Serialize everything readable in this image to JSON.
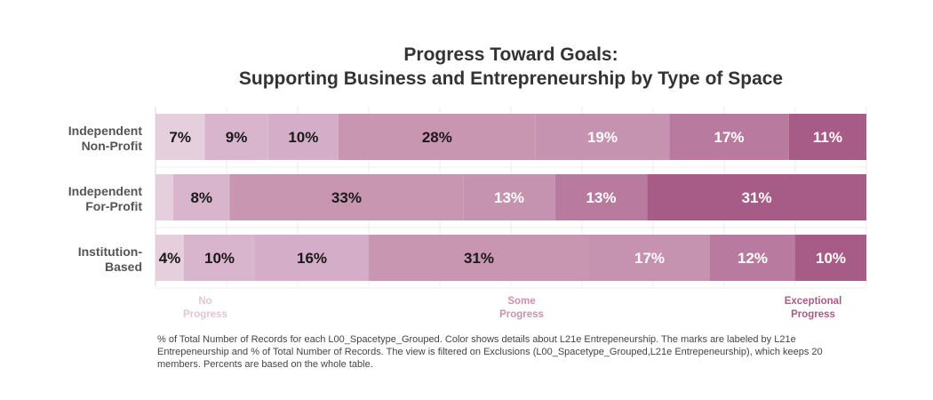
{
  "title": {
    "line1": "Progress Toward Goals:",
    "line2": "Supporting Business and Entrepreneurship by Type of Space"
  },
  "chart_data": {
    "type": "bar",
    "orientation": "horizontal",
    "stacked": true,
    "categories": [
      [
        "Independent",
        "Non-Profit"
      ],
      [
        "Independent",
        "For-Profit"
      ],
      [
        "Institution-",
        "Based"
      ]
    ],
    "x_range": [
      0,
      100
    ],
    "grid": true,
    "series": [
      {
        "level": 1,
        "color": "#e6cfdc",
        "values": [
          7,
          2.5,
          4
        ],
        "labels": [
          "7%",
          "",
          "4%"
        ]
      },
      {
        "level": 2,
        "color": "#d8b4cd",
        "values": [
          9,
          8,
          10
        ],
        "labels": [
          "9%",
          "8%",
          "10%"
        ]
      },
      {
        "level": 3,
        "color": "#d4aec8",
        "values": [
          10,
          0,
          16
        ],
        "labels": [
          "10%",
          "",
          "16%"
        ]
      },
      {
        "level": 4,
        "color": "#c996b2",
        "values": [
          28,
          33,
          31
        ],
        "labels": [
          "28%",
          "33%",
          "31%"
        ]
      },
      {
        "level": 5,
        "color": "#c592b0",
        "values": [
          19,
          13,
          17
        ],
        "labels": [
          "19%",
          "13%",
          "17%"
        ]
      },
      {
        "level": 6,
        "color": "#b87b9f",
        "values": [
          17,
          13,
          12
        ],
        "labels": [
          "17%",
          "13%",
          "12%"
        ]
      },
      {
        "level": 7,
        "color": "#a75c87",
        "values": [
          11,
          31,
          10
        ],
        "labels": [
          "11%",
          "31%",
          "10%"
        ]
      }
    ],
    "label_colors": {
      "dark": "#1a1a1a",
      "light": "#ffffff"
    },
    "legend": [
      {
        "lines": [
          "No",
          "Progress"
        ],
        "color": "#e3c6d6",
        "at": 7
      },
      {
        "lines": [
          "Some",
          "Progress"
        ],
        "color": "#c792b0",
        "at": 51.5
      },
      {
        "lines": [
          "Exceptional",
          "Progress"
        ],
        "color": "#a75c87",
        "at": 92.5
      }
    ]
  },
  "footnote": "% of Total Number of Records for each L00_Spacetype_Grouped. Color shows details about L21e Entrepeneurship. The marks are labeled by L21e Entrepeneurship and % of Total Number of Records. The view is filtered on Exclusions (L00_Spacetype_Grouped,L21e Entrepeneurship), which keeps 20 members. Percents are based on the whole table."
}
